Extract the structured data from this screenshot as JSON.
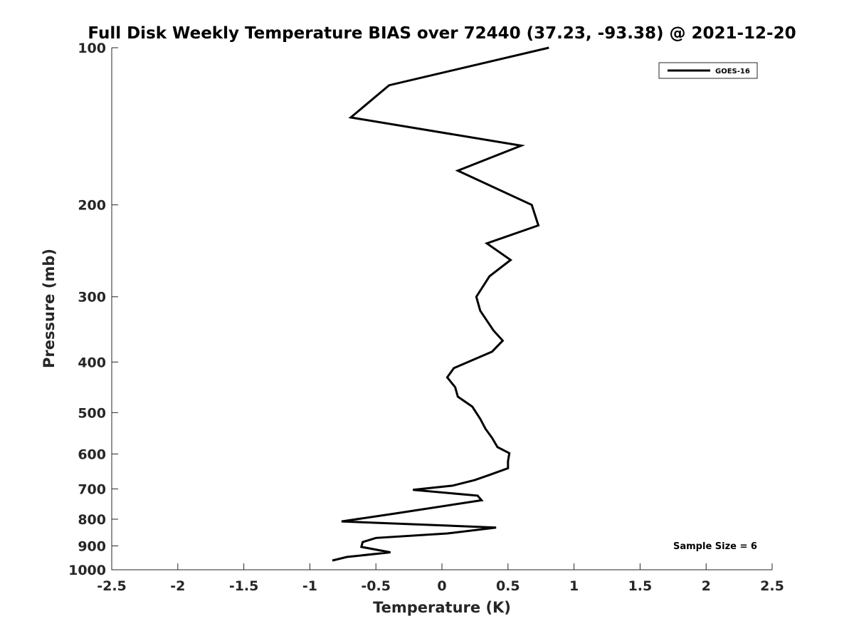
{
  "chart_data": {
    "type": "line",
    "title": "Full Disk Weekly Temperature BIAS over 72440 (37.23, -93.38) @ 2021-12-20",
    "xlabel": "Temperature (K)",
    "ylabel": "Pressure (mb)",
    "xlim": [
      -2.5,
      2.5
    ],
    "ylim": [
      100,
      1000
    ],
    "yscale": "log",
    "yaxis_reversed": true,
    "xticks": [
      "-2.5",
      "-2",
      "-1.5",
      "-1",
      "-0.5",
      "0",
      "0.5",
      "1",
      "1.5",
      "2",
      "2.5"
    ],
    "yticks": [
      "100",
      "200",
      "300",
      "400",
      "500",
      "600",
      "700",
      "800",
      "900",
      "1000"
    ],
    "grid": false,
    "legend_position": "top-right",
    "annotation": "Sample Size = 6",
    "series": [
      {
        "name": "GOES-16",
        "color": "#000000",
        "points": [
          [
            0.81,
            100
          ],
          [
            -0.4,
            118
          ],
          [
            -0.69,
            136
          ],
          [
            0.6,
            154
          ],
          [
            0.12,
            172
          ],
          [
            0.68,
            200
          ],
          [
            0.73,
            219
          ],
          [
            0.34,
            237
          ],
          [
            0.52,
            255
          ],
          [
            0.36,
            274
          ],
          [
            0.26,
            300
          ],
          [
            0.29,
            319
          ],
          [
            0.39,
            348
          ],
          [
            0.46,
            364
          ],
          [
            0.38,
            382
          ],
          [
            0.09,
            411
          ],
          [
            0.04,
            428
          ],
          [
            0.1,
            447
          ],
          [
            0.12,
            466
          ],
          [
            0.23,
            487
          ],
          [
            0.29,
            514
          ],
          [
            0.33,
            537
          ],
          [
            0.38,
            559
          ],
          [
            0.42,
            582
          ],
          [
            0.51,
            598
          ],
          [
            0.5,
            620
          ],
          [
            0.5,
            639
          ],
          [
            0.36,
            658
          ],
          [
            0.25,
            673
          ],
          [
            0.08,
            690
          ],
          [
            -0.22,
            703
          ],
          [
            0.27,
            721
          ],
          [
            0.3,
            736
          ],
          [
            -0.35,
            780
          ],
          [
            -0.76,
            808
          ],
          [
            0.41,
            830
          ],
          [
            0.04,
            852
          ],
          [
            -0.5,
            869
          ],
          [
            -0.6,
            885
          ],
          [
            -0.61,
            904
          ],
          [
            -0.39,
            926
          ],
          [
            -0.72,
            945
          ],
          [
            -0.83,
            960
          ]
        ]
      }
    ]
  }
}
